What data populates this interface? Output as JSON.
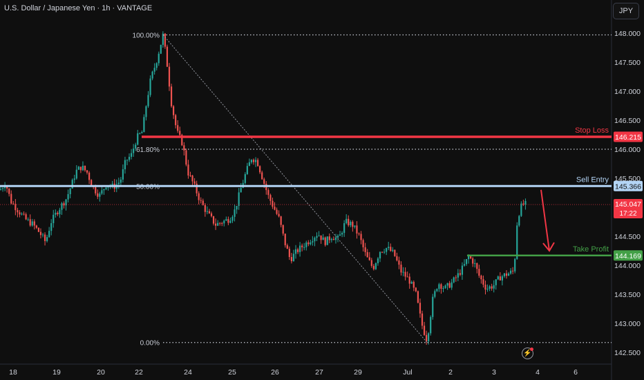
{
  "header": {
    "symbol_title": "U.S. Dollar / Japanese Yen · 1h · VANTAGE",
    "currency_button": "JPY"
  },
  "colors": {
    "bull": "#26a69a",
    "bear": "#ef5350",
    "stop_loss": "#f23645",
    "sell_entry": "#b3d4f5",
    "take_profit": "#43a047",
    "arrow": "#f23645",
    "grid": "#9598a1"
  },
  "chart_data": {
    "type": "candlestick",
    "title": "U.S. Dollar / Japanese Yen · 1h · VANTAGE",
    "ylim": [
      142.45,
      148.15
    ],
    "y_ticks": [
      148.0,
      147.5,
      147.0,
      146.5,
      146.0,
      145.5,
      145.0,
      144.5,
      144.0,
      143.5,
      143.0,
      142.5
    ],
    "y_tick_labels": [
      "148.000",
      "147.500",
      "147.000",
      "146.500",
      "146.000",
      "145.500",
      "145.000",
      "144.500",
      "144.000",
      "143.500",
      "143.000",
      "142.500"
    ],
    "x_tick_labels": [
      "18",
      "19",
      "20",
      "22",
      "24",
      "25",
      "26",
      "27",
      "29",
      "Jul",
      "2",
      "3",
      "4",
      "6"
    ],
    "fibonacci": [
      {
        "label": "100.00%",
        "price": 147.97
      },
      {
        "label": "61.80%",
        "price": 146.0
      },
      {
        "label": "50.00%",
        "price": 145.366
      },
      {
        "label": "0.00%",
        "price": 142.67
      }
    ],
    "levels": [
      {
        "name": "Stop Loss",
        "price": 146.215,
        "price_label": "146.215"
      },
      {
        "name": "Sell Entry",
        "price": 145.366,
        "price_label": "145.366"
      },
      {
        "name": "Take Profit",
        "price": 144.169,
        "price_label": "144.169"
      }
    ],
    "last_price": {
      "price": 145.047,
      "label": "145.047",
      "countdown": "17:22"
    },
    "close_path": [
      [
        0,
        145.3
      ],
      [
        8,
        145.42
      ],
      [
        16,
        145.1
      ],
      [
        26,
        144.95
      ],
      [
        36,
        144.8
      ],
      [
        48,
        144.7
      ],
      [
        58,
        144.55
      ],
      [
        66,
        144.4
      ],
      [
        74,
        144.75
      ],
      [
        84,
        144.95
      ],
      [
        96,
        145.15
      ],
      [
        104,
        145.4
      ],
      [
        110,
        145.62
      ],
      [
        118,
        145.7
      ],
      [
        126,
        145.6
      ],
      [
        134,
        145.35
      ],
      [
        144,
        145.2
      ],
      [
        154,
        145.4
      ],
      [
        164,
        145.35
      ],
      [
        174,
        145.45
      ],
      [
        182,
        145.8
      ],
      [
        190,
        145.9
      ],
      [
        198,
        146.2
      ],
      [
        206,
        146.3
      ],
      [
        212,
        146.8
      ],
      [
        218,
        147.2
      ],
      [
        226,
        147.5
      ],
      [
        236,
        147.97
      ],
      [
        242,
        147.45
      ],
      [
        248,
        146.8
      ],
      [
        256,
        146.3
      ],
      [
        264,
        146.1
      ],
      [
        272,
        145.6
      ],
      [
        280,
        145.4
      ],
      [
        290,
        145.1
      ],
      [
        300,
        144.9
      ],
      [
        312,
        144.7
      ],
      [
        322,
        144.75
      ],
      [
        332,
        144.8
      ],
      [
        340,
        144.95
      ],
      [
        348,
        145.3
      ],
      [
        356,
        145.6
      ],
      [
        364,
        145.85
      ],
      [
        372,
        145.8
      ],
      [
        380,
        145.5
      ],
      [
        388,
        145.2
      ],
      [
        396,
        145.0
      ],
      [
        404,
        144.8
      ],
      [
        412,
        144.4
      ],
      [
        420,
        144.1
      ],
      [
        430,
        144.25
      ],
      [
        440,
        144.35
      ],
      [
        450,
        144.45
      ],
      [
        460,
        144.55
      ],
      [
        470,
        144.4
      ],
      [
        480,
        144.5
      ],
      [
        490,
        144.45
      ],
      [
        500,
        144.75
      ],
      [
        510,
        144.7
      ],
      [
        520,
        144.5
      ],
      [
        530,
        144.15
      ],
      [
        540,
        143.95
      ],
      [
        550,
        144.25
      ],
      [
        560,
        144.3
      ],
      [
        570,
        144.2
      ],
      [
        580,
        143.9
      ],
      [
        592,
        143.75
      ],
      [
        602,
        143.5
      ],
      [
        610,
        143.0
      ],
      [
        618,
        142.7
      ],
      [
        626,
        143.4
      ],
      [
        634,
        143.7
      ],
      [
        644,
        143.6
      ],
      [
        654,
        143.7
      ],
      [
        664,
        143.85
      ],
      [
        672,
        144.0
      ],
      [
        678,
        144.15
      ],
      [
        686,
        144.05
      ],
      [
        694,
        143.8
      ],
      [
        704,
        143.6
      ],
      [
        714,
        143.65
      ],
      [
        724,
        143.8
      ],
      [
        734,
        143.85
      ],
      [
        744,
        143.9
      ],
      [
        748,
        144.7
      ],
      [
        752,
        144.95
      ],
      [
        756,
        145.05
      ],
      [
        762,
        145.05
      ]
    ]
  },
  "annotations": {
    "stop_loss_label": "Stop Loss",
    "sell_entry_label": "Sell Entry",
    "take_profit_label": "Take Profit"
  }
}
